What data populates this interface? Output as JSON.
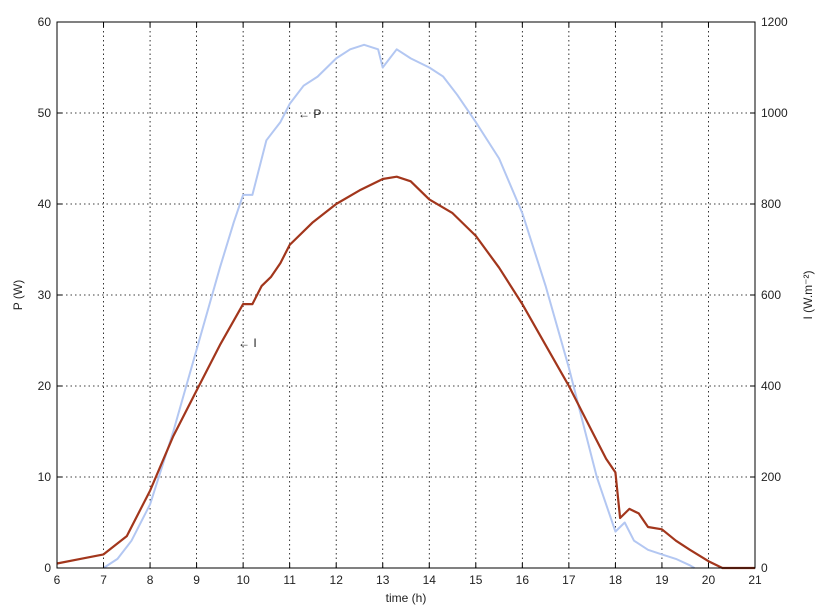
{
  "chart_data": {
    "type": "line",
    "title": "",
    "xlabel": "time (h)",
    "ylabel_left": "P (W)",
    "ylabel_right": "I (W.m⁻²)",
    "xlim": [
      6,
      21
    ],
    "ylim_left": [
      0,
      60
    ],
    "ylim_right": [
      0,
      1200
    ],
    "grid": true,
    "x_ticks": [
      6,
      7,
      8,
      9,
      10,
      11,
      12,
      13,
      14,
      15,
      16,
      17,
      18,
      19,
      20,
      21
    ],
    "y_ticks_left": [
      0,
      10,
      20,
      30,
      40,
      50,
      60
    ],
    "y_ticks_right": [
      0,
      200,
      400,
      600,
      800,
      1000,
      1200
    ],
    "annotations": [
      {
        "text": "← P",
        "series": "P"
      },
      {
        "text": "← I",
        "series": "I"
      }
    ],
    "series": [
      {
        "name": "P",
        "axis": "left",
        "color": "#b3c7f2",
        "x": [
          7.0,
          7.3,
          7.6,
          8.0,
          8.5,
          9.0,
          9.5,
          9.8,
          10.0,
          10.2,
          10.5,
          10.8,
          11.0,
          11.3,
          11.6,
          12.0,
          12.3,
          12.6,
          12.9,
          13.0,
          13.3,
          13.6,
          14.0,
          14.3,
          14.6,
          15.0,
          15.5,
          16.0,
          16.5,
          17.0,
          17.3,
          17.6,
          17.8,
          18.0,
          18.2,
          18.4,
          18.7,
          19.0,
          19.3,
          19.6,
          19.7
        ],
        "y": [
          0,
          1,
          3,
          7,
          15,
          24,
          33,
          38,
          41,
          41,
          47,
          49,
          51,
          53,
          54,
          56,
          57,
          57.5,
          57,
          55,
          57,
          56,
          55,
          54,
          52,
          49,
          45,
          39,
          31,
          22,
          16,
          10,
          7,
          4,
          5,
          3,
          2,
          1.5,
          1,
          0.3,
          0
        ]
      },
      {
        "name": "I",
        "axis": "right",
        "color": "#a2361c",
        "x": [
          6.0,
          6.5,
          7.0,
          7.5,
          8.0,
          8.5,
          9.0,
          9.5,
          10.0,
          10.2,
          10.4,
          10.6,
          10.8,
          11.0,
          11.5,
          12.0,
          12.5,
          13.0,
          13.3,
          13.6,
          14.0,
          14.5,
          15.0,
          15.5,
          16.0,
          16.5,
          17.0,
          17.5,
          17.8,
          18.0,
          18.1,
          18.3,
          18.5,
          18.7,
          19.0,
          19.3,
          19.6,
          20.0,
          20.3,
          20.6,
          21.0
        ],
        "y": [
          10,
          20,
          30,
          70,
          170,
          290,
          390,
          490,
          580,
          580,
          620,
          640,
          670,
          710,
          760,
          800,
          830,
          855,
          860,
          850,
          810,
          780,
          730,
          660,
          580,
          490,
          400,
          300,
          240,
          210,
          110,
          130,
          120,
          90,
          85,
          60,
          40,
          15,
          0,
          0,
          0
        ]
      }
    ]
  }
}
